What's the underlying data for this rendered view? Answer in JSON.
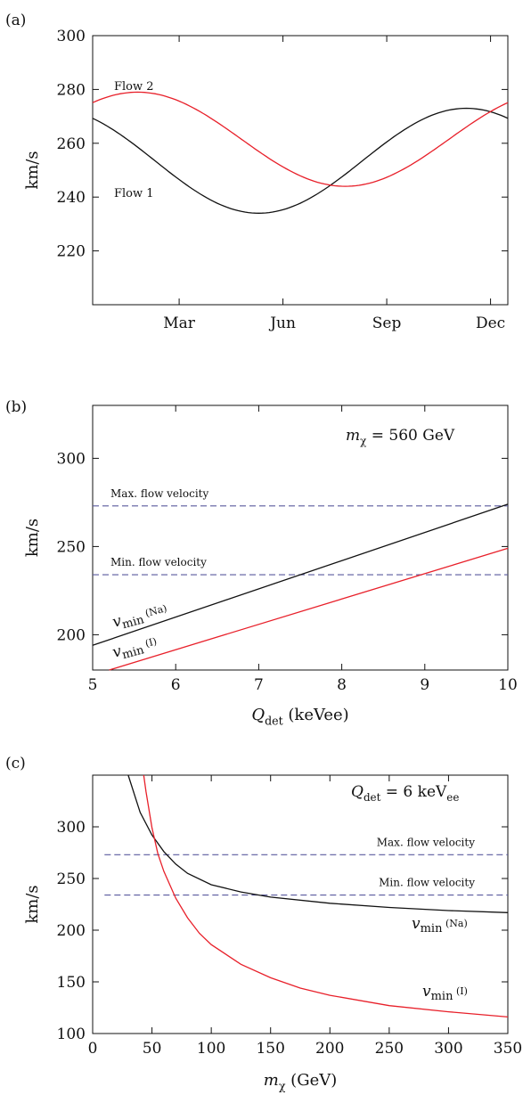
{
  "chart_data": [
    {
      "panel_label": "(a)",
      "type": "line",
      "ylabel": "km/s",
      "ylim": [
        200,
        300
      ],
      "yticks": [
        220,
        240,
        260,
        280,
        300
      ],
      "xlabels": [
        "Mar",
        "Jun",
        "Sep",
        "Dec"
      ],
      "series": [
        {
          "name": "Flow 1",
          "color": "#111111",
          "mean": 253.5,
          "amp": 19.5,
          "peak_month": 10.8
        },
        {
          "name": "Flow 2",
          "color": "#e8202a",
          "mean": 261.5,
          "amp": 17.5,
          "peak_month": 1.3
        }
      ]
    },
    {
      "panel_label": "(b)",
      "type": "line",
      "xlabel": "Q",
      "xlabel_sub": "det",
      "xlabel_unit": "(keVee)",
      "ylabel": "km/s",
      "xlim": [
        5,
        10
      ],
      "ylim": [
        180,
        330
      ],
      "xticks": [
        5,
        6,
        7,
        8,
        9,
        10
      ],
      "yticks": [
        200,
        250,
        300
      ],
      "annotation": {
        "lhs": "m",
        "sub": "χ",
        "rhs": "= 560 GeV"
      },
      "hlines": [
        {
          "label": "Max. flow velocity",
          "y": 273
        },
        {
          "label": "Min. flow velocity",
          "y": 234
        }
      ],
      "series": [
        {
          "name": "v",
          "sub": "min",
          "tag": "(Na)",
          "color": "#111111",
          "x": [
            5,
            10
          ],
          "y": [
            194,
            274
          ]
        },
        {
          "name": "v",
          "sub": "min",
          "tag": "(I)",
          "color": "#e8202a",
          "x": [
            5.2,
            10
          ],
          "y": [
            180,
            249
          ]
        }
      ]
    },
    {
      "panel_label": "(c)",
      "type": "line",
      "xlabel": "m",
      "xlabel_sub": "χ",
      "xlabel_unit": "(GeV)",
      "ylabel": "km/s",
      "xlim": [
        0,
        350
      ],
      "ylim": [
        100,
        350
      ],
      "xticks": [
        0,
        50,
        100,
        150,
        200,
        250,
        300,
        350
      ],
      "yticks": [
        100,
        150,
        200,
        250,
        300
      ],
      "annotation": {
        "lhs": "Q",
        "sub": "det",
        "rhs": "= 6 keV",
        "rhs_sub": "ee"
      },
      "hlines": [
        {
          "label": "Max. flow velocity",
          "y": 273
        },
        {
          "label": "Min. flow velocity",
          "y": 234
        }
      ],
      "series": [
        {
          "name": "v",
          "sub": "min",
          "tag": "(Na)",
          "color": "#111111",
          "x": [
            30,
            35,
            40,
            50,
            60,
            70,
            80,
            100,
            125,
            150,
            200,
            250,
            300,
            350
          ],
          "y": [
            350,
            332,
            314,
            292,
            276,
            264,
            255,
            244,
            237,
            232,
            226,
            222,
            219,
            217
          ]
        },
        {
          "name": "v",
          "sub": "min",
          "tag": "(I)",
          "color": "#e8202a",
          "x": [
            43,
            45,
            50,
            55,
            60,
            70,
            80,
            90,
            100,
            125,
            150,
            175,
            200,
            250,
            300,
            350
          ],
          "y": [
            350,
            334,
            299,
            274,
            257,
            231,
            212,
            197,
            186,
            167,
            154,
            144,
            137,
            127,
            121,
            116
          ]
        }
      ]
    }
  ]
}
